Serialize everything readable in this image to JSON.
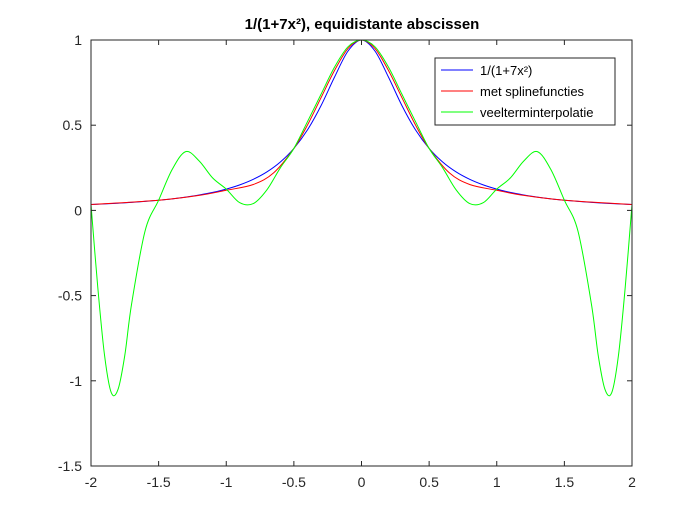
{
  "chart_data": {
    "type": "line",
    "title": "1/(1+7x²), equidistante abscissen",
    "xlabel": "",
    "ylabel": "",
    "xlim": [
      -2,
      2
    ],
    "ylim": [
      -1.5,
      1
    ],
    "xticks": [
      -2,
      -1.5,
      -1,
      -0.5,
      0,
      0.5,
      1,
      1.5,
      2
    ],
    "xtick_labels": [
      "-2",
      "-1.5",
      "-1",
      "-0.5",
      "0",
      "0.5",
      "1",
      "1.5",
      "2"
    ],
    "yticks": [
      -1.5,
      -1,
      -0.5,
      0,
      0.5,
      1
    ],
    "ytick_labels": [
      "-1.5",
      "-1",
      "-0.5",
      "0",
      "0.5",
      "1"
    ],
    "grid": false,
    "legend_position": "top-right",
    "series": [
      {
        "name": "1/(1+7x²)",
        "color": "#0000ff",
        "x": [
          -2,
          -1.9,
          -1.8,
          -1.7,
          -1.6,
          -1.5,
          -1.4,
          -1.3,
          -1.2,
          -1.1,
          -1,
          -0.9,
          -0.8,
          -0.7,
          -0.6,
          -0.5,
          -0.4,
          -0.3,
          -0.2,
          -0.1,
          0,
          0.1,
          0.2,
          0.3,
          0.4,
          0.5,
          0.6,
          0.7,
          0.8,
          0.9,
          1,
          1.1,
          1.2,
          1.3,
          1.4,
          1.5,
          1.6,
          1.7,
          1.8,
          1.9,
          2
        ],
        "y": [
          0.0345,
          0.0381,
          0.0422,
          0.0471,
          0.0529,
          0.0597,
          0.0679,
          0.078,
          0.0903,
          0.1056,
          0.125,
          0.1499,
          0.1825,
          0.2257,
          0.2841,
          0.3636,
          0.4717,
          0.6135,
          0.7813,
          0.9346,
          1,
          0.9346,
          0.7813,
          0.6135,
          0.4717,
          0.3636,
          0.2841,
          0.2257,
          0.1825,
          0.1499,
          0.125,
          0.1056,
          0.0903,
          0.078,
          0.0679,
          0.0597,
          0.0529,
          0.0471,
          0.0422,
          0.0381,
          0.0345
        ]
      },
      {
        "name": "met splinefuncties",
        "color": "#ff0000",
        "x": [
          -2,
          -1.5,
          -1.2,
          -1,
          -0.8,
          -0.65,
          -0.5,
          -0.4,
          -0.3,
          -0.2,
          -0.1,
          0,
          0.1,
          0.2,
          0.3,
          0.4,
          0.5,
          0.65,
          0.8,
          1,
          1.2,
          1.5,
          2
        ],
        "y": [
          0.0345,
          0.0597,
          0.088,
          0.118,
          0.152,
          0.22,
          0.3636,
          0.5,
          0.66,
          0.82,
          0.95,
          1,
          0.95,
          0.82,
          0.66,
          0.5,
          0.3636,
          0.22,
          0.152,
          0.118,
          0.088,
          0.0597,
          0.0345
        ]
      },
      {
        "name": "veelterminterpolatie",
        "color": "#00ff00",
        "x": [
          -2,
          -1.95,
          -1.9,
          -1.85,
          -1.8,
          -1.75,
          -1.7,
          -1.6,
          -1.5,
          -1.4,
          -1.3,
          -1.2,
          -1.1,
          -1,
          -0.9,
          -0.8,
          -0.7,
          -0.6,
          -0.5,
          -0.4,
          -0.3,
          -0.2,
          -0.1,
          0,
          0.1,
          0.2,
          0.3,
          0.4,
          0.5,
          0.6,
          0.7,
          0.8,
          0.9,
          1,
          1.1,
          1.2,
          1.3,
          1.4,
          1.5,
          1.6,
          1.7,
          1.75,
          1.8,
          1.85,
          1.9,
          1.95,
          2
        ],
        "y": [
          0.0345,
          -0.45,
          -0.85,
          -1.07,
          -1.05,
          -0.85,
          -0.55,
          -0.12,
          0.0597,
          0.24,
          0.345,
          0.29,
          0.19,
          0.125,
          0.045,
          0.04,
          0.12,
          0.25,
          0.3636,
          0.52,
          0.68,
          0.84,
          0.96,
          1,
          0.96,
          0.84,
          0.68,
          0.52,
          0.3636,
          0.25,
          0.12,
          0.04,
          0.045,
          0.125,
          0.19,
          0.29,
          0.345,
          0.24,
          0.0597,
          -0.12,
          -0.55,
          -0.85,
          -1.05,
          -1.07,
          -0.85,
          -0.45,
          0.0345
        ]
      }
    ]
  }
}
